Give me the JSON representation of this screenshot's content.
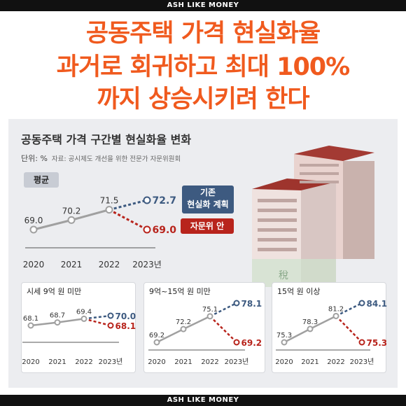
{
  "brand": "ASH LIKE MONEY",
  "headline": [
    "공동주택 가격 현실화율",
    "과거로 회귀하고 최대 100%",
    "까지 상승시키려 한다"
  ],
  "panel": {
    "title": "공동주택 가격 구간별 현실화율 변화",
    "unit": "단위: %",
    "source": "자료: 공시제도 개선을 위한 전문가 자문위원회",
    "avg_badge": "평균",
    "legend_plan": [
      "기존",
      "현실화 계획"
    ],
    "legend_adv": "자문위 안"
  },
  "colors": {
    "headline": "#f05a1e",
    "actual": "#a0a0a0",
    "plan": "#3d5a80",
    "advisory": "#b8241c"
  },
  "chart_data": [
    {
      "type": "line",
      "title": "평균",
      "x": [
        "2020",
        "2021",
        "2022",
        "2023년"
      ],
      "series": [
        {
          "name": "",
          "values": [
            69.0,
            70.2,
            71.5,
            null
          ],
          "labels": [
            "69.0",
            "70.2",
            "71.5",
            ""
          ]
        },
        {
          "name": "기존 현실화 계획",
          "values": [
            null,
            null,
            71.5,
            72.7
          ],
          "labels": [
            "",
            "",
            "",
            "72.7"
          ]
        },
        {
          "name": "자문위 안",
          "values": [
            null,
            null,
            71.5,
            69.0
          ],
          "labels": [
            "",
            "",
            "",
            "69.0"
          ]
        }
      ]
    },
    {
      "type": "line",
      "title": "시세 9억 원 미만",
      "x": [
        "2020",
        "2021",
        "2022",
        "2023년"
      ],
      "series": [
        {
          "name": "",
          "values": [
            68.1,
            68.7,
            69.4,
            null
          ],
          "labels": [
            "68.1",
            "68.7",
            "69.4",
            ""
          ]
        },
        {
          "name": "기존 현실화 계획",
          "values": [
            null,
            null,
            69.4,
            70.0
          ],
          "labels": [
            "",
            "",
            "",
            "70.0"
          ]
        },
        {
          "name": "자문위 안",
          "values": [
            null,
            null,
            69.4,
            68.1
          ],
          "labels": [
            "",
            "",
            "",
            "68.1"
          ]
        }
      ]
    },
    {
      "type": "line",
      "title": "9억~15억 원 미만",
      "x": [
        "2020",
        "2021",
        "2022",
        "2023년"
      ],
      "series": [
        {
          "name": "",
          "values": [
            69.2,
            72.2,
            75.1,
            null
          ],
          "labels": [
            "69.2",
            "72.2",
            "75.1",
            ""
          ]
        },
        {
          "name": "기존 현실화 계획",
          "values": [
            null,
            null,
            75.1,
            78.1
          ],
          "labels": [
            "",
            "",
            "",
            "78.1"
          ]
        },
        {
          "name": "자문위 안",
          "values": [
            null,
            null,
            75.1,
            69.2
          ],
          "labels": [
            "",
            "",
            "",
            "69.2"
          ]
        }
      ]
    },
    {
      "type": "line",
      "title": "15억 원 이상",
      "x": [
        "2020",
        "2021",
        "2022",
        "2023년"
      ],
      "series": [
        {
          "name": "",
          "values": [
            75.3,
            78.3,
            81.2,
            null
          ],
          "labels": [
            "75.3",
            "78.3",
            "81.2",
            ""
          ]
        },
        {
          "name": "기존 현실화 계획",
          "values": [
            null,
            null,
            81.2,
            84.1
          ],
          "labels": [
            "",
            "",
            "",
            "84.1"
          ]
        },
        {
          "name": "자문위 안",
          "values": [
            null,
            null,
            81.2,
            75.3
          ],
          "labels": [
            "",
            "",
            "",
            "75.3"
          ]
        }
      ]
    }
  ]
}
